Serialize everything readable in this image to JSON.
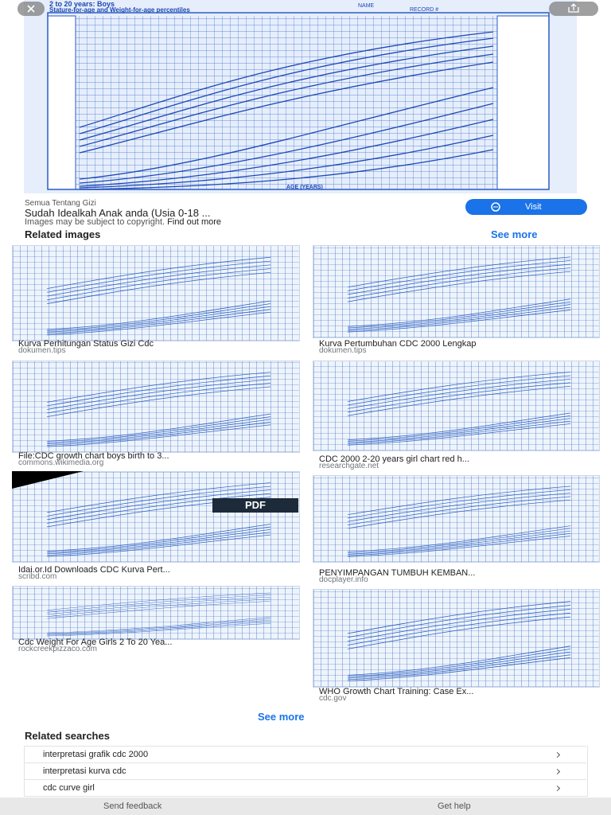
{
  "hero": {
    "title": "2 to 20 years: Boys",
    "subtitle": "Stature-for-age and Weight-for-age percentiles",
    "name_label": "NAME",
    "record_label": "RECORD #",
    "axis_label": "AGE (YEARS)"
  },
  "result": {
    "source": "Semua Tentang Gizi",
    "title": "Sudah Idealkah Anak anda (Usia 0-18 ...",
    "copyright": "Images may be subject to copyright.",
    "find_out_more": "Find out more",
    "visit": "Visit"
  },
  "related_images": {
    "heading": "Related images",
    "see_more": "See more",
    "items": [
      {
        "caption": "Kurva Perhitungan Status Gizi Cdc",
        "source": "dokumen.tips"
      },
      {
        "caption": "Kurva Pertumbuhan CDC 2000 Lengkap",
        "source": "dokumen.tips"
      },
      {
        "caption": "File:CDC growth chart boys birth to 3...",
        "source": "commons.wikimedia.org"
      },
      {
        "caption": "CDC 2000 2-20 years girl chart red h...",
        "source": "researchgate.net"
      },
      {
        "caption": "Idai.or.Id Downloads CDC Kurva Pert...",
        "source": "scribd.com",
        "badge": "PDF"
      },
      {
        "caption": "PENYIMPANGAN TUMBUH KEMBAN...",
        "source": "docplayer.info"
      },
      {
        "caption": "Cdc Weight For Age Girls 2 To 20 Yea...",
        "source": "rockcreekpizzaco.com"
      },
      {
        "caption": "WHO Growth Chart Training: Case Ex...",
        "source": "cdc.gov"
      }
    ],
    "see_more_bottom": "See more"
  },
  "related_searches": {
    "heading": "Related searches",
    "items": [
      "interpretasi grafik cdc 2000",
      "interpretasi kurva cdc",
      "cdc curve girl"
    ]
  },
  "footer": {
    "feedback": "Send feedback",
    "help": "Get help"
  }
}
